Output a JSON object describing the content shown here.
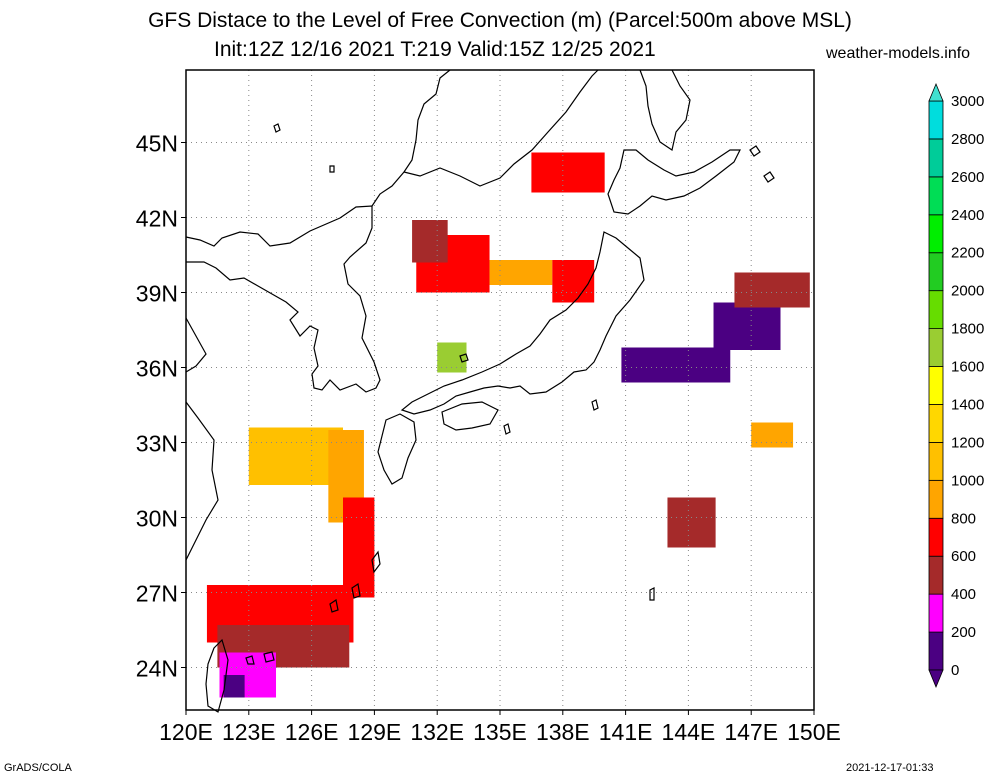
{
  "header": {
    "title": "GFS Distace to the Level of Free Convection (m) (Parcel:500m above MSL)",
    "subtitle": "Init:12Z 12/16 2021 T:219 Valid:15Z 12/25 2021",
    "site": "weather-models.info"
  },
  "footer": {
    "left": "GrADS/COLA",
    "right": "2021-12-17-01:33"
  },
  "map": {
    "lon_range": [
      120,
      150
    ],
    "lat_range": [
      22.3,
      47.9
    ],
    "lon_ticks": [
      {
        "value": 120,
        "label": "120E"
      },
      {
        "value": 123,
        "label": "123E"
      },
      {
        "value": 126,
        "label": "126E"
      },
      {
        "value": 129,
        "label": "129E"
      },
      {
        "value": 132,
        "label": "132E"
      },
      {
        "value": 135,
        "label": "135E"
      },
      {
        "value": 138,
        "label": "138E"
      },
      {
        "value": 141,
        "label": "141E"
      },
      {
        "value": 144,
        "label": "144E"
      },
      {
        "value": 147,
        "label": "147E"
      },
      {
        "value": 150,
        "label": "150E"
      }
    ],
    "lat_ticks": [
      {
        "value": 24,
        "label": "24N"
      },
      {
        "value": 27,
        "label": "27N"
      },
      {
        "value": 30,
        "label": "30N"
      },
      {
        "value": 33,
        "label": "33N"
      },
      {
        "value": 36,
        "label": "36N"
      },
      {
        "value": 39,
        "label": "39N"
      },
      {
        "value": 42,
        "label": "42N"
      },
      {
        "value": 45,
        "label": "45N"
      }
    ],
    "grid": true,
    "regions": [
      {
        "level": 600,
        "color": "#ff0000",
        "lon": [
          131.0,
          134.5
        ],
        "lat": [
          39.0,
          41.3
        ]
      },
      {
        "level": 400,
        "color": "#a52a2a",
        "lon": [
          130.8,
          132.5
        ],
        "lat": [
          40.2,
          41.9
        ]
      },
      {
        "level": 800,
        "color": "#ffa500",
        "lon": [
          134.5,
          137.5
        ],
        "lat": [
          39.3,
          40.3
        ]
      },
      {
        "level": 600,
        "color": "#ff0000",
        "lon": [
          137.5,
          139.5
        ],
        "lat": [
          38.6,
          40.3
        ]
      },
      {
        "level": 1600,
        "color": "#9acd32",
        "lon": [
          132.0,
          133.4
        ],
        "lat": [
          35.8,
          37.0
        ]
      },
      {
        "level": 1000,
        "color": "#ffc000",
        "lon": [
          123.0,
          127.5
        ],
        "lat": [
          31.3,
          33.6
        ]
      },
      {
        "level": 800,
        "color": "#ffa500",
        "lon": [
          126.8,
          128.5
        ],
        "lat": [
          29.8,
          33.5
        ]
      },
      {
        "level": 600,
        "color": "#ff0000",
        "lon": [
          127.5,
          129.0
        ],
        "lat": [
          26.8,
          30.8
        ]
      },
      {
        "level": 600,
        "color": "#ff0000",
        "lon": [
          121.0,
          128.0
        ],
        "lat": [
          25.0,
          27.3
        ]
      },
      {
        "level": 400,
        "color": "#a52a2a",
        "lon": [
          121.5,
          127.8
        ],
        "lat": [
          24.0,
          25.7
        ]
      },
      {
        "level": 200,
        "color": "#ff00ff",
        "lon": [
          121.6,
          124.3
        ],
        "lat": [
          22.8,
          24.6
        ]
      },
      {
        "level": 0,
        "color": "#4b0082",
        "lon": [
          121.8,
          122.8
        ],
        "lat": [
          22.8,
          23.7
        ]
      },
      {
        "level": 0,
        "color": "#4b0082",
        "lon": [
          140.8,
          146.0
        ],
        "lat": [
          35.4,
          36.8
        ]
      },
      {
        "level": 0,
        "color": "#4b0082",
        "lon": [
          145.2,
          148.4
        ],
        "lat": [
          36.7,
          38.6
        ]
      },
      {
        "level": 400,
        "color": "#a52a2a",
        "lon": [
          146.2,
          149.8
        ],
        "lat": [
          38.4,
          39.8
        ]
      },
      {
        "level": 400,
        "color": "#a52a2a",
        "lon": [
          143.0,
          145.3
        ],
        "lat": [
          28.8,
          30.8
        ]
      },
      {
        "level": 800,
        "color": "#ffa500",
        "lon": [
          147.0,
          149.0
        ],
        "lat": [
          32.8,
          33.8
        ]
      },
      {
        "level": 600,
        "color": "#ff0000",
        "lon": [
          136.5,
          140.0
        ],
        "lat": [
          43.0,
          44.6
        ]
      }
    ]
  },
  "colorbar": {
    "levels": [
      0,
      200,
      400,
      600,
      800,
      1000,
      1200,
      1400,
      1600,
      1800,
      2000,
      2200,
      2400,
      2600,
      2800,
      3000
    ],
    "colors": [
      "#4b0082",
      "#ff00ff",
      "#a52a2a",
      "#ff0000",
      "#ffa500",
      "#ffc000",
      "#ffd700",
      "#ffff00",
      "#9acd32",
      "#66dd00",
      "#22cc22",
      "#00ee00",
      "#00dd55",
      "#00cc99",
      "#00dddd"
    ],
    "under_color": "#4b0082",
    "over_color": "#40e0d0"
  }
}
